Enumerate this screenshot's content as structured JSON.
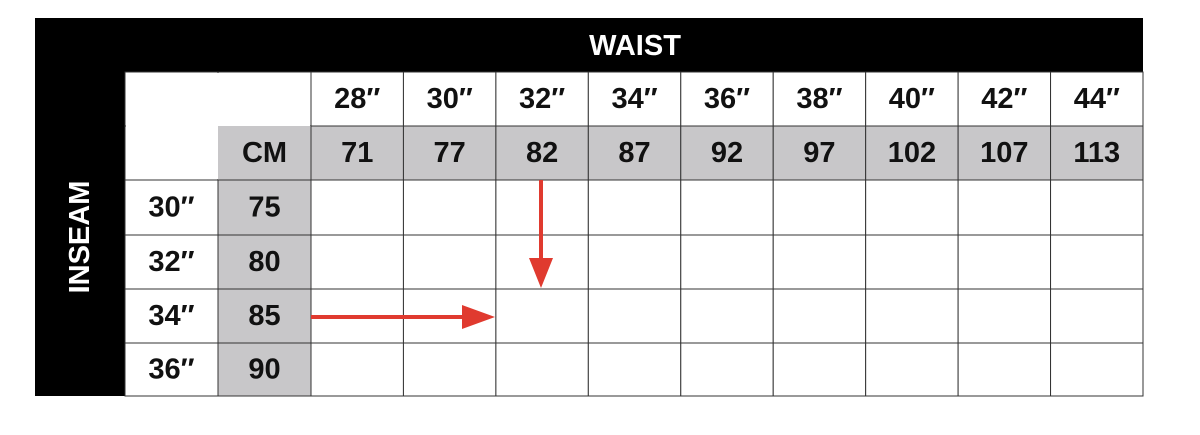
{
  "header": {
    "title": "WAIST",
    "side_title": "INSEAM",
    "cm_label": "CM"
  },
  "waist": {
    "inches": [
      "28″",
      "30″",
      "32″",
      "34″",
      "36″",
      "38″",
      "40″",
      "42″",
      "44″"
    ],
    "cm": [
      "71",
      "77",
      "82",
      "87",
      "92",
      "97",
      "102",
      "107",
      "113"
    ]
  },
  "inseam": [
    {
      "inches": "30″",
      "cm": "75"
    },
    {
      "inches": "32″",
      "cm": "80"
    },
    {
      "inches": "34″",
      "cm": "85"
    },
    {
      "inches": "36″",
      "cm": "90"
    }
  ]
}
